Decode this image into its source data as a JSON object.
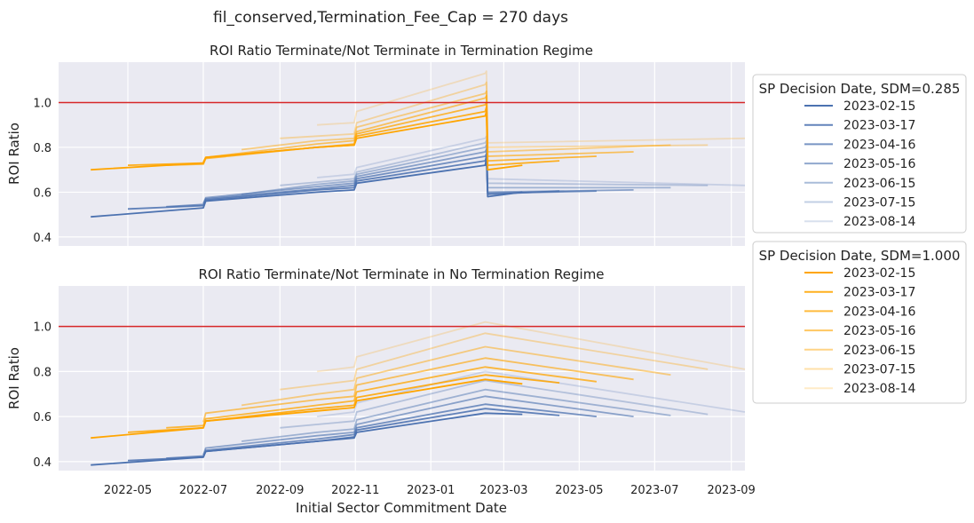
{
  "chart_data": {
    "type": "line",
    "suptitle": "fil_conserved,Termination_Fee_Cap = 270 days",
    "xlabel": "Initial Sector Commitment Date",
    "ylabel": "ROI Ratio",
    "x_ticks": [
      "2022-05",
      "2022-07",
      "2022-09",
      "2022-11",
      "2023-01",
      "2023-03",
      "2023-05",
      "2023-07",
      "2023-09"
    ],
    "y_ticks": [
      "0.4",
      "0.6",
      "0.8",
      "1.0"
    ],
    "ylim": [
      0.36,
      1.18
    ],
    "reference_line": 1.0,
    "reference_color": "#d62728",
    "grid": true,
    "legends": [
      {
        "title": "SP Decision Date, SDM=0.285",
        "color": "#4c72b0",
        "entries": [
          "2023-02-15",
          "2023-03-17",
          "2023-04-16",
          "2023-05-16",
          "2023-06-15",
          "2023-07-15",
          "2023-08-14"
        ],
        "alphas": [
          1.0,
          0.88,
          0.76,
          0.62,
          0.48,
          0.34,
          0.22
        ]
      },
      {
        "title": "SP Decision Date, SDM=1.000",
        "color": "#ffa500",
        "entries": [
          "2023-02-15",
          "2023-03-17",
          "2023-04-16",
          "2023-05-16",
          "2023-06-15",
          "2023-07-15",
          "2023-08-14"
        ],
        "alphas": [
          1.0,
          0.88,
          0.76,
          0.62,
          0.48,
          0.34,
          0.22
        ]
      }
    ],
    "panels": [
      {
        "title": "ROI Ratio Terminate/Not Terminate in Termination Regime",
        "series": [
          {
            "group": 0,
            "i": 0,
            "x": [
              "2022-04-01",
              "2022-07-01",
              "2022-07-03",
              "2022-10-01",
              "2022-10-31",
              "2022-11-02",
              "2023-02-14",
              "2023-02-15",
              "2023-02-16",
              "2023-03-16"
            ],
            "y": [
              0.49,
              0.53,
              0.56,
              0.6,
              0.61,
              0.64,
              0.72,
              0.75,
              0.58,
              0.6
            ]
          },
          {
            "group": 0,
            "i": 1,
            "x": [
              "2022-05-01",
              "2022-07-01",
              "2022-07-03",
              "2022-10-01",
              "2022-10-31",
              "2022-11-02",
              "2023-02-14",
              "2023-02-15",
              "2023-02-16",
              "2023-04-15"
            ],
            "y": [
              0.525,
              0.54,
              0.565,
              0.61,
              0.62,
              0.65,
              0.74,
              0.76,
              0.59,
              0.605
            ]
          },
          {
            "group": 0,
            "i": 2,
            "x": [
              "2022-06-01",
              "2022-07-01",
              "2022-07-03",
              "2022-10-01",
              "2022-10-31",
              "2022-11-02",
              "2023-02-14",
              "2023-02-15",
              "2023-02-16",
              "2023-05-15"
            ],
            "y": [
              0.535,
              0.545,
              0.57,
              0.615,
              0.63,
              0.66,
              0.76,
              0.77,
              0.595,
              0.605
            ]
          },
          {
            "group": 0,
            "i": 3,
            "x": [
              "2022-07-01",
              "2022-07-03",
              "2022-10-01",
              "2022-10-31",
              "2022-11-02",
              "2023-02-14",
              "2023-02-15",
              "2023-02-16",
              "2023-06-14"
            ],
            "y": [
              0.55,
              0.575,
              0.625,
              0.64,
              0.67,
              0.78,
              0.79,
              0.6,
              0.61
            ]
          },
          {
            "group": 0,
            "i": 4,
            "x": [
              "2022-08-01",
              "2022-10-01",
              "2022-10-31",
              "2022-11-02",
              "2023-02-14",
              "2023-02-15",
              "2023-02-16",
              "2023-07-14"
            ],
            "y": [
              0.59,
              0.635,
              0.65,
              0.68,
              0.8,
              0.81,
              0.62,
              0.62
            ]
          },
          {
            "group": 0,
            "i": 5,
            "x": [
              "2022-09-01",
              "2022-10-01",
              "2022-10-31",
              "2022-11-02",
              "2023-02-14",
              "2023-02-15",
              "2023-02-16",
              "2023-08-13"
            ],
            "y": [
              0.63,
              0.645,
              0.66,
              0.69,
              0.82,
              0.83,
              0.64,
              0.63
            ]
          },
          {
            "group": 0,
            "i": 6,
            "x": [
              "2022-10-01",
              "2022-10-31",
              "2022-11-02",
              "2023-02-14",
              "2023-02-15",
              "2023-02-16",
              "2023-09-12"
            ],
            "y": [
              0.665,
              0.68,
              0.71,
              0.84,
              0.85,
              0.66,
              0.63
            ]
          },
          {
            "group": 1,
            "i": 0,
            "x": [
              "2022-04-01",
              "2022-07-01",
              "2022-07-03",
              "2022-10-01",
              "2022-10-31",
              "2022-11-02",
              "2023-02-14",
              "2023-02-15",
              "2023-02-16",
              "2023-03-16"
            ],
            "y": [
              0.7,
              0.73,
              0.755,
              0.8,
              0.81,
              0.84,
              0.94,
              0.96,
              0.7,
              0.72
            ]
          },
          {
            "group": 1,
            "i": 1,
            "x": [
              "2022-05-01",
              "2022-07-01",
              "2022-07-03",
              "2022-10-01",
              "2022-10-31",
              "2022-11-02",
              "2023-02-14",
              "2023-02-15",
              "2023-02-16",
              "2023-04-15"
            ],
            "y": [
              0.72,
              0.73,
              0.755,
              0.8,
              0.81,
              0.85,
              0.96,
              0.98,
              0.72,
              0.74
            ]
          },
          {
            "group": 1,
            "i": 2,
            "x": [
              "2022-06-01",
              "2022-07-01",
              "2022-07-03",
              "2022-10-01",
              "2022-10-31",
              "2022-11-02",
              "2023-02-14",
              "2023-02-15",
              "2023-02-16",
              "2023-05-15"
            ],
            "y": [
              0.72,
              0.725,
              0.75,
              0.8,
              0.815,
              0.86,
              0.99,
              1.0,
              0.74,
              0.76
            ]
          },
          {
            "group": 1,
            "i": 3,
            "x": [
              "2022-07-01",
              "2022-07-03",
              "2022-10-01",
              "2022-10-31",
              "2022-11-02",
              "2023-02-14",
              "2023-02-15",
              "2023-02-16",
              "2023-06-14"
            ],
            "y": [
              0.735,
              0.755,
              0.815,
              0.83,
              0.87,
              1.02,
              1.03,
              0.76,
              0.78
            ]
          },
          {
            "group": 1,
            "i": 4,
            "x": [
              "2022-08-01",
              "2022-10-01",
              "2022-10-31",
              "2022-11-02",
              "2023-02-14",
              "2023-02-15",
              "2023-02-16",
              "2023-07-14"
            ],
            "y": [
              0.79,
              0.83,
              0.84,
              0.89,
              1.04,
              1.05,
              0.78,
              0.81
            ]
          },
          {
            "group": 1,
            "i": 5,
            "x": [
              "2022-09-01",
              "2022-10-01",
              "2022-10-31",
              "2022-11-02",
              "2023-02-14",
              "2023-02-15",
              "2023-02-16",
              "2023-08-13"
            ],
            "y": [
              0.84,
              0.85,
              0.86,
              0.91,
              1.08,
              1.09,
              0.8,
              0.81
            ]
          },
          {
            "group": 1,
            "i": 6,
            "x": [
              "2022-10-01",
              "2022-10-31",
              "2022-11-02",
              "2023-02-14",
              "2023-02-15",
              "2023-02-16",
              "2023-09-12"
            ],
            "y": [
              0.9,
              0.91,
              0.96,
              1.13,
              1.14,
              0.82,
              0.84
            ]
          }
        ]
      },
      {
        "title": "ROI Ratio Terminate/Not Terminate in No Termination Regime",
        "series": [
          {
            "group": 0,
            "i": 0,
            "x": [
              "2022-04-01",
              "2022-07-01",
              "2022-07-03",
              "2022-10-01",
              "2022-10-31",
              "2022-11-02",
              "2023-02-14",
              "2023-03-16"
            ],
            "y": [
              0.385,
              0.42,
              0.445,
              0.49,
              0.505,
              0.53,
              0.615,
              0.61
            ]
          },
          {
            "group": 0,
            "i": 1,
            "x": [
              "2022-05-01",
              "2022-07-01",
              "2022-07-03",
              "2022-10-01",
              "2022-10-31",
              "2022-11-02",
              "2023-02-14",
              "2023-04-15"
            ],
            "y": [
              0.405,
              0.42,
              0.445,
              0.49,
              0.51,
              0.54,
              0.635,
              0.605
            ]
          },
          {
            "group": 0,
            "i": 2,
            "x": [
              "2022-06-01",
              "2022-07-01",
              "2022-07-03",
              "2022-10-01",
              "2022-10-31",
              "2022-11-02",
              "2023-02-14",
              "2023-05-15"
            ],
            "y": [
              0.415,
              0.425,
              0.45,
              0.5,
              0.52,
              0.55,
              0.655,
              0.6
            ]
          },
          {
            "group": 0,
            "i": 3,
            "x": [
              "2022-07-01",
              "2022-07-03",
              "2022-10-01",
              "2022-10-31",
              "2022-11-02",
              "2023-02-14",
              "2023-06-14"
            ],
            "y": [
              0.43,
              0.46,
              0.515,
              0.53,
              0.565,
              0.69,
              0.6
            ]
          },
          {
            "group": 0,
            "i": 4,
            "x": [
              "2022-08-01",
              "2022-10-01",
              "2022-10-31",
              "2022-11-02",
              "2023-02-14",
              "2023-07-14"
            ],
            "y": [
              0.49,
              0.53,
              0.545,
              0.585,
              0.72,
              0.605
            ]
          },
          {
            "group": 0,
            "i": 5,
            "x": [
              "2022-09-01",
              "2022-10-01",
              "2022-10-31",
              "2022-11-02",
              "2023-02-14",
              "2023-08-13"
            ],
            "y": [
              0.55,
              0.565,
              0.58,
              0.62,
              0.76,
              0.61
            ]
          },
          {
            "group": 0,
            "i": 6,
            "x": [
              "2022-10-01",
              "2022-10-31",
              "2022-11-02",
              "2023-02-14",
              "2023-09-12"
            ],
            "y": [
              0.6,
              0.62,
              0.66,
              0.8,
              0.62
            ]
          },
          {
            "group": 1,
            "i": 0,
            "x": [
              "2022-04-01",
              "2022-07-01",
              "2022-07-03",
              "2022-10-01",
              "2022-10-31",
              "2022-11-02",
              "2023-02-14",
              "2023-03-16"
            ],
            "y": [
              0.505,
              0.55,
              0.58,
              0.625,
              0.64,
              0.67,
              0.765,
              0.745
            ]
          },
          {
            "group": 1,
            "i": 1,
            "x": [
              "2022-05-01",
              "2022-07-01",
              "2022-07-03",
              "2022-10-01",
              "2022-10-31",
              "2022-11-02",
              "2023-02-14",
              "2023-04-15"
            ],
            "y": [
              0.53,
              0.55,
              0.58,
              0.635,
              0.65,
              0.685,
              0.785,
              0.75
            ]
          },
          {
            "group": 1,
            "i": 2,
            "x": [
              "2022-06-01",
              "2022-07-01",
              "2022-07-03",
              "2022-10-01",
              "2022-10-31",
              "2022-11-02",
              "2023-02-14",
              "2023-05-15"
            ],
            "y": [
              0.55,
              0.56,
              0.59,
              0.65,
              0.67,
              0.71,
              0.82,
              0.755
            ]
          },
          {
            "group": 1,
            "i": 3,
            "x": [
              "2022-07-01",
              "2022-07-03",
              "2022-10-01",
              "2022-10-31",
              "2022-11-02",
              "2023-02-14",
              "2023-06-14"
            ],
            "y": [
              0.575,
              0.615,
              0.675,
              0.69,
              0.74,
              0.86,
              0.765
            ]
          },
          {
            "group": 1,
            "i": 4,
            "x": [
              "2022-08-01",
              "2022-10-01",
              "2022-10-31",
              "2022-11-02",
              "2023-02-14",
              "2023-07-14"
            ],
            "y": [
              0.65,
              0.7,
              0.72,
              0.77,
              0.91,
              0.785
            ]
          },
          {
            "group": 1,
            "i": 5,
            "x": [
              "2022-09-01",
              "2022-10-01",
              "2022-10-31",
              "2022-11-02",
              "2023-02-14",
              "2023-08-13"
            ],
            "y": [
              0.72,
              0.74,
              0.76,
              0.81,
              0.97,
              0.81
            ]
          },
          {
            "group": 1,
            "i": 6,
            "x": [
              "2022-10-01",
              "2022-10-31",
              "2022-11-02",
              "2023-02-14",
              "2023-09-12"
            ],
            "y": [
              0.8,
              0.82,
              0.865,
              1.02,
              0.81
            ]
          }
        ]
      }
    ]
  }
}
